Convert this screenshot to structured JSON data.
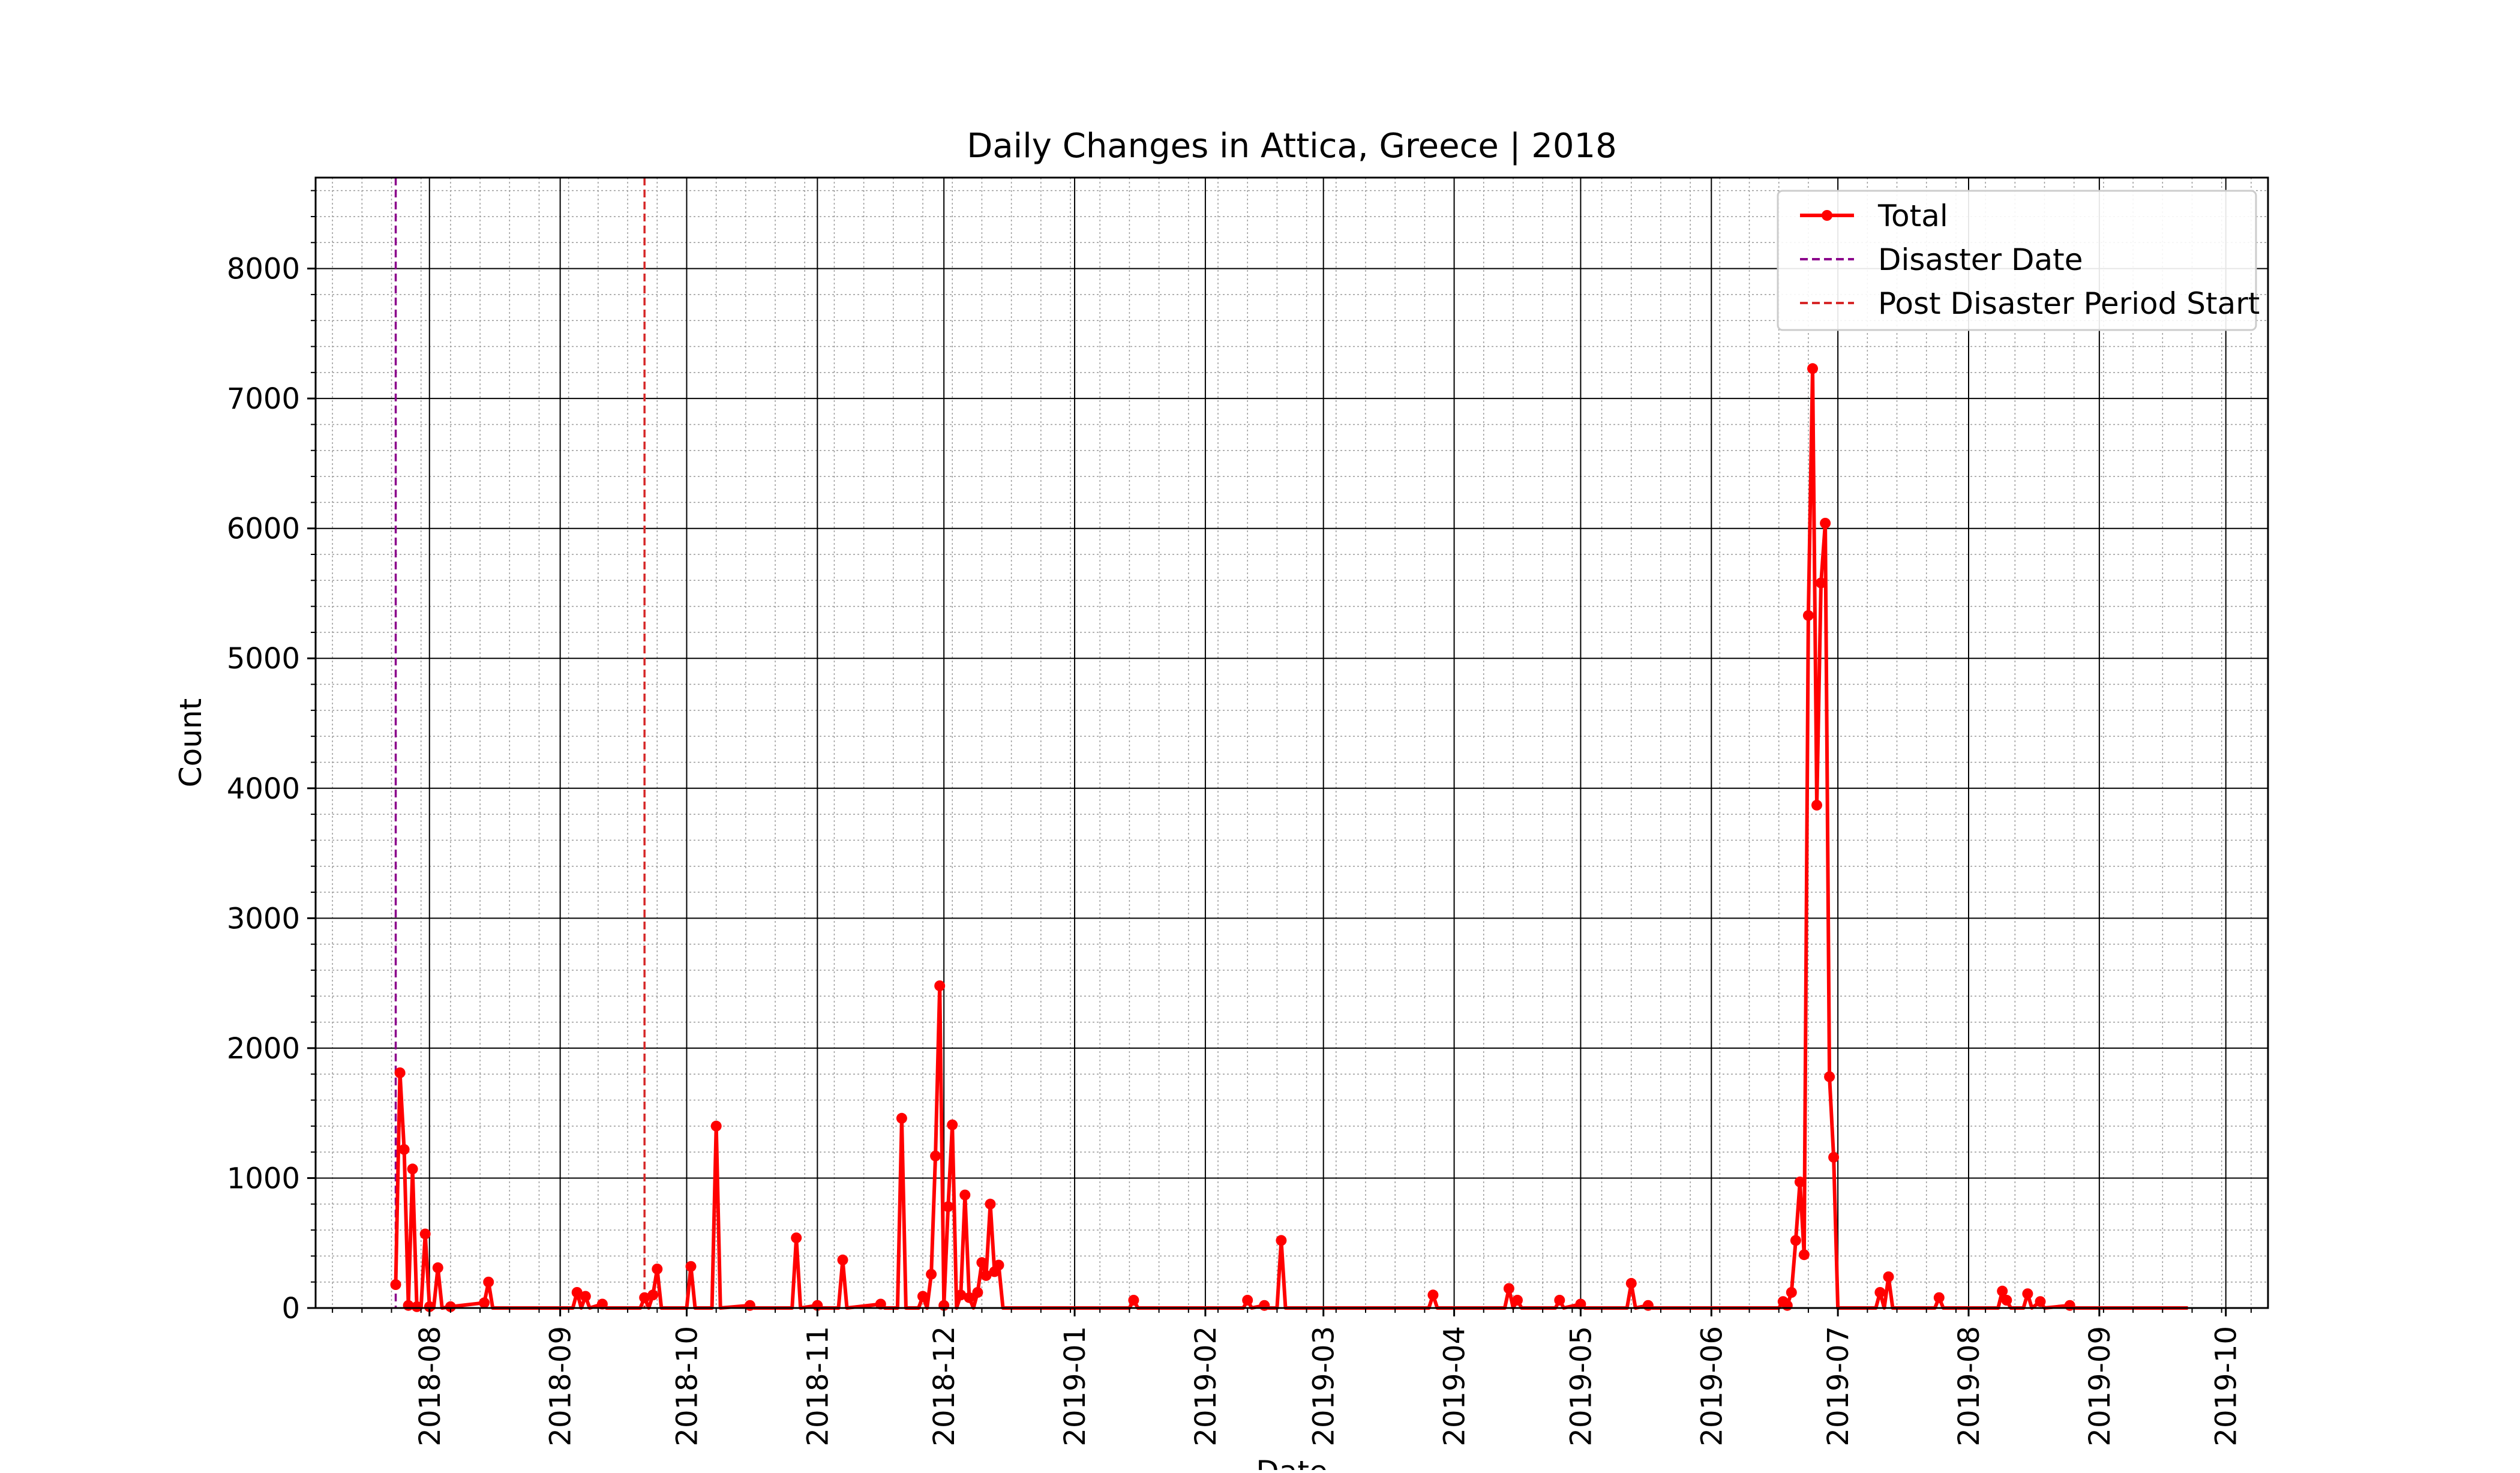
{
  "chart_data": {
    "type": "line",
    "title": "Daily Changes in Attica, Greece | 2018",
    "xlabel": "Date",
    "ylabel": "Count",
    "ylim": [
      0,
      8700
    ],
    "xlim": [
      "2018-07-05",
      "2019-10-11"
    ],
    "y_ticks": [
      0,
      1000,
      2000,
      3000,
      4000,
      5000,
      6000,
      7000,
      8000
    ],
    "x_ticks": [
      "2018-08",
      "2018-09",
      "2018-10",
      "2018-11",
      "2018-12",
      "2019-01",
      "2019-02",
      "2019-03",
      "2019-04",
      "2019-05",
      "2019-06",
      "2019-07",
      "2019-08",
      "2019-09",
      "2019-10"
    ],
    "grid": true,
    "minor_grid": true,
    "legend_position": "top-right",
    "legend": [
      "Total",
      "Disaster Date",
      "Post Disaster Period Start"
    ],
    "colors": {
      "series": "#ff0000",
      "disaster_line": "#8b008b",
      "post_disaster_line": "#d62728",
      "major_grid": "#000000",
      "minor_grid": "#9a9a9a"
    },
    "vlines": [
      {
        "name": "Disaster Date",
        "date": "2018-07-24"
      },
      {
        "name": "Post Disaster Period Start",
        "date": "2018-09-21"
      }
    ],
    "series": [
      {
        "name": "Total",
        "points": [
          [
            "2018-07-24",
            180
          ],
          [
            "2018-07-25",
            1810
          ],
          [
            "2018-07-26",
            1220
          ],
          [
            "2018-07-27",
            20
          ],
          [
            "2018-07-28",
            1070
          ],
          [
            "2018-07-29",
            10
          ],
          [
            "2018-07-30",
            0
          ],
          [
            "2018-07-31",
            570
          ],
          [
            "2018-08-01",
            10
          ],
          [
            "2018-08-02",
            0
          ],
          [
            "2018-08-03",
            310
          ],
          [
            "2018-08-04",
            0
          ],
          [
            "2018-08-06",
            10
          ],
          [
            "2018-08-14",
            40
          ],
          [
            "2018-08-15",
            200
          ],
          [
            "2018-08-16",
            0
          ],
          [
            "2018-09-04",
            0
          ],
          [
            "2018-09-05",
            120
          ],
          [
            "2018-09-06",
            0
          ],
          [
            "2018-09-07",
            90
          ],
          [
            "2018-09-08",
            0
          ],
          [
            "2018-09-11",
            30
          ],
          [
            "2018-09-12",
            0
          ],
          [
            "2018-09-20",
            0
          ],
          [
            "2018-09-21",
            80
          ],
          [
            "2018-09-22",
            0
          ],
          [
            "2018-09-23",
            100
          ],
          [
            "2018-09-24",
            300
          ],
          [
            "2018-09-25",
            0
          ],
          [
            "2018-10-01",
            0
          ],
          [
            "2018-10-02",
            320
          ],
          [
            "2018-10-03",
            0
          ],
          [
            "2018-10-07",
            0
          ],
          [
            "2018-10-08",
            1400
          ],
          [
            "2018-10-09",
            0
          ],
          [
            "2018-10-16",
            20
          ],
          [
            "2018-10-17",
            0
          ],
          [
            "2018-10-26",
            0
          ],
          [
            "2018-10-27",
            540
          ],
          [
            "2018-10-28",
            0
          ],
          [
            "2018-11-01",
            20
          ],
          [
            "2018-11-02",
            0
          ],
          [
            "2018-11-06",
            0
          ],
          [
            "2018-11-07",
            370
          ],
          [
            "2018-11-08",
            0
          ],
          [
            "2018-11-16",
            30
          ],
          [
            "2018-11-17",
            0
          ],
          [
            "2018-11-20",
            0
          ],
          [
            "2018-11-21",
            1460
          ],
          [
            "2018-11-22",
            0
          ],
          [
            "2018-11-25",
            0
          ],
          [
            "2018-11-26",
            90
          ],
          [
            "2018-11-27",
            0
          ],
          [
            "2018-11-28",
            260
          ],
          [
            "2018-11-29",
            1170
          ],
          [
            "2018-11-30",
            2480
          ],
          [
            "2018-12-01",
            20
          ],
          [
            "2018-12-02",
            780
          ],
          [
            "2018-12-03",
            1410
          ],
          [
            "2018-12-04",
            0
          ],
          [
            "2018-12-05",
            100
          ],
          [
            "2018-12-06",
            870
          ],
          [
            "2018-12-07",
            80
          ],
          [
            "2018-12-08",
            0
          ],
          [
            "2018-12-09",
            120
          ],
          [
            "2018-12-10",
            350
          ],
          [
            "2018-12-11",
            250
          ],
          [
            "2018-12-12",
            800
          ],
          [
            "2018-12-13",
            280
          ],
          [
            "2018-12-14",
            330
          ],
          [
            "2018-12-15",
            0
          ],
          [
            "2019-01-14",
            0
          ],
          [
            "2019-01-15",
            60
          ],
          [
            "2019-01-16",
            0
          ],
          [
            "2019-02-10",
            0
          ],
          [
            "2019-02-11",
            60
          ],
          [
            "2019-02-12",
            0
          ],
          [
            "2019-02-15",
            20
          ],
          [
            "2019-02-16",
            0
          ],
          [
            "2019-02-18",
            0
          ],
          [
            "2019-02-19",
            520
          ],
          [
            "2019-02-20",
            0
          ],
          [
            "2019-03-26",
            0
          ],
          [
            "2019-03-27",
            100
          ],
          [
            "2019-03-28",
            0
          ],
          [
            "2019-04-13",
            0
          ],
          [
            "2019-04-14",
            150
          ],
          [
            "2019-04-15",
            0
          ],
          [
            "2019-04-16",
            60
          ],
          [
            "2019-04-17",
            0
          ],
          [
            "2019-04-25",
            0
          ],
          [
            "2019-04-26",
            60
          ],
          [
            "2019-04-27",
            0
          ],
          [
            "2019-05-01",
            30
          ],
          [
            "2019-05-02",
            0
          ],
          [
            "2019-05-12",
            0
          ],
          [
            "2019-05-13",
            190
          ],
          [
            "2019-05-14",
            0
          ],
          [
            "2019-05-17",
            20
          ],
          [
            "2019-05-18",
            0
          ],
          [
            "2019-06-17",
            0
          ],
          [
            "2019-06-18",
            50
          ],
          [
            "2019-06-19",
            20
          ],
          [
            "2019-06-20",
            120
          ],
          [
            "2019-06-21",
            520
          ],
          [
            "2019-06-22",
            970
          ],
          [
            "2019-06-23",
            410
          ],
          [
            "2019-06-24",
            5330
          ],
          [
            "2019-06-25",
            7230
          ],
          [
            "2019-06-26",
            3870
          ],
          [
            "2019-06-27",
            5580
          ],
          [
            "2019-06-28",
            6040
          ],
          [
            "2019-06-29",
            1780
          ],
          [
            "2019-06-30",
            1160
          ],
          [
            "2019-07-01",
            0
          ],
          [
            "2019-07-10",
            0
          ],
          [
            "2019-07-11",
            120
          ],
          [
            "2019-07-12",
            0
          ],
          [
            "2019-07-13",
            240
          ],
          [
            "2019-07-14",
            0
          ],
          [
            "2019-07-24",
            0
          ],
          [
            "2019-07-25",
            80
          ],
          [
            "2019-07-26",
            0
          ],
          [
            "2019-08-08",
            0
          ],
          [
            "2019-08-09",
            130
          ],
          [
            "2019-08-10",
            60
          ],
          [
            "2019-08-11",
            0
          ],
          [
            "2019-08-14",
            0
          ],
          [
            "2019-08-15",
            110
          ],
          [
            "2019-08-16",
            0
          ],
          [
            "2019-08-18",
            50
          ],
          [
            "2019-08-19",
            0
          ],
          [
            "2019-08-25",
            20
          ],
          [
            "2019-08-26",
            0
          ],
          [
            "2019-09-22",
            0
          ]
        ]
      }
    ]
  }
}
